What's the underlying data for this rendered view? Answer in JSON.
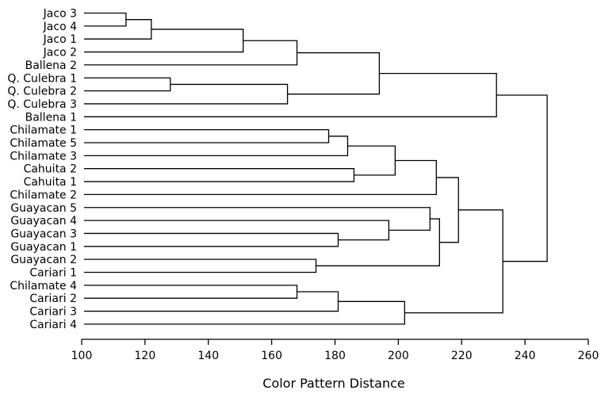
{
  "chart_data": {
    "type": "dendrogram",
    "title": "",
    "xlabel": "Color Pattern Distance",
    "ylabel": "",
    "xlim": [
      100,
      260
    ],
    "xticks": [
      100,
      120,
      140,
      160,
      180,
      200,
      220,
      240,
      260
    ],
    "grid": false,
    "leaves": [
      "Jaco 3",
      "Jaco 4",
      "Jaco 1",
      "Jaco 2",
      "Ballena 2",
      "Q. Culebra 1",
      "Q. Culebra 2",
      "Q. Culebra 3",
      "Ballena 1",
      "Chilamate 1",
      "Chilamate 5",
      "Chilamate 3",
      "Cahuita 2",
      "Cahuita 1",
      "Chilamate 2",
      "Guayacan 5",
      "Guayacan 4",
      "Guayacan 3",
      "Guayacan 1",
      "Guayacan 2",
      "Cariari 1",
      "Chilamate 4",
      "Cariari 2",
      "Cariari 3",
      "Cariari 4"
    ],
    "merges": [
      {
        "id": "n1",
        "left": "Jaco 3",
        "right": "Jaco 4",
        "height": 114
      },
      {
        "id": "n2",
        "left": "n1",
        "right": "Jaco 1",
        "height": 122
      },
      {
        "id": "n3",
        "left": "n2",
        "right": "Jaco 2",
        "height": 151
      },
      {
        "id": "n4",
        "left": "n3",
        "right": "Ballena 2",
        "height": 168
      },
      {
        "id": "n5",
        "left": "Q. Culebra 1",
        "right": "Q. Culebra 2",
        "height": 128
      },
      {
        "id": "n6",
        "left": "n5",
        "right": "Q. Culebra 3",
        "height": 165
      },
      {
        "id": "n7",
        "left": "n4",
        "right": "n6",
        "height": 194
      },
      {
        "id": "n8",
        "left": "n7",
        "right": "Ballena 1",
        "height": 231
      },
      {
        "id": "n9",
        "left": "Chilamate 1",
        "right": "Chilamate 5",
        "height": 178
      },
      {
        "id": "n10",
        "left": "n9",
        "right": "Chilamate 3",
        "height": 184
      },
      {
        "id": "n11",
        "left": "Cahuita 2",
        "right": "Cahuita 1",
        "height": 186
      },
      {
        "id": "n12",
        "left": "n10",
        "right": "n11",
        "height": 199
      },
      {
        "id": "n13",
        "left": "n12",
        "right": "Chilamate 2",
        "height": 212
      },
      {
        "id": "n14",
        "left": "Guayacan 3",
        "right": "Guayacan 1",
        "height": 181
      },
      {
        "id": "n15",
        "left": "Guayacan 4",
        "right": "n14",
        "height": 197
      },
      {
        "id": "n16",
        "left": "Guayacan 5",
        "right": "n15",
        "height": 210
      },
      {
        "id": "n17",
        "left": "Guayacan 2",
        "right": "Cariari 1",
        "height": 174
      },
      {
        "id": "n18",
        "left": "n16",
        "right": "n17",
        "height": 213
      },
      {
        "id": "n19",
        "left": "n13",
        "right": "n18",
        "height": 219
      },
      {
        "id": "n20",
        "left": "Chilamate 4",
        "right": "Cariari 2",
        "height": 168
      },
      {
        "id": "n21",
        "left": "n20",
        "right": "Cariari 3",
        "height": 181
      },
      {
        "id": "n22",
        "left": "n21",
        "right": "Cariari 4",
        "height": 202
      },
      {
        "id": "n23",
        "left": "n19",
        "right": "n22",
        "height": 233
      },
      {
        "id": "n24",
        "left": "n8",
        "right": "n23",
        "height": 247
      }
    ]
  }
}
